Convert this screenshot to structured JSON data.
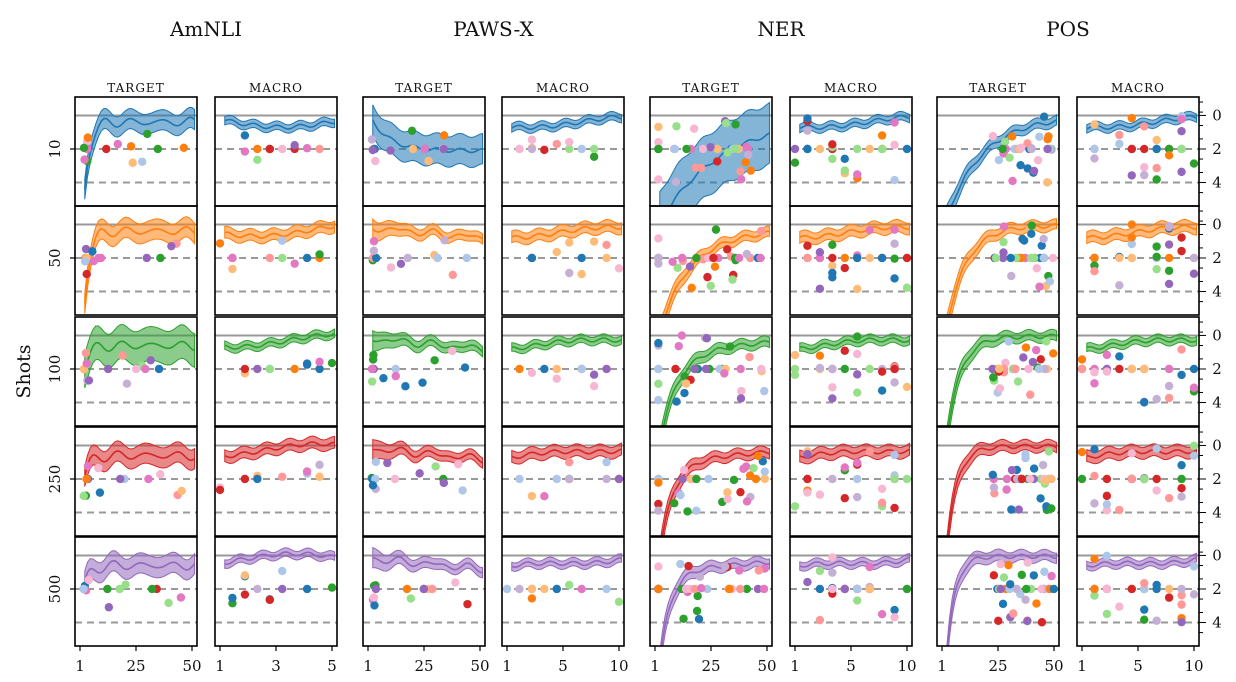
{
  "chart_data": {
    "type": "line",
    "ylabel": "Shots",
    "tasks": [
      {
        "title": "AmNLI",
        "target_xticks": [
          "1",
          "25",
          "50"
        ],
        "macro_xticks": [
          "1",
          "3",
          "5"
        ]
      },
      {
        "title": "PAWS-X",
        "target_xticks": [
          "1",
          "25",
          "50"
        ],
        "macro_xticks": [
          "1",
          "5",
          "10"
        ]
      },
      {
        "title": "NER",
        "target_xticks": [
          "1",
          "25",
          "50"
        ],
        "macro_xticks": [
          "1",
          "5",
          "10"
        ]
      },
      {
        "title": "POS",
        "target_xticks": [
          "1",
          "25",
          "50"
        ],
        "macro_xticks": [
          "1",
          "5",
          "10"
        ]
      }
    ],
    "panel_labels": [
      "TARGET",
      "MACRO"
    ],
    "shots": [
      "10",
      "50",
      "100",
      "250",
      "500"
    ],
    "right_yticks": [
      "0",
      "2",
      "4"
    ],
    "row_colors": [
      "#1f77b4",
      "#ff7f0e",
      "#2ca02c",
      "#d62728",
      "#9467bd"
    ],
    "dot_palette": [
      "#1f77b4",
      "#aec7e8",
      "#ff7f0e",
      "#ffbb78",
      "#2ca02c",
      "#98df8a",
      "#d62728",
      "#ff9896",
      "#9467bd",
      "#c5b0d5",
      "#e377c2",
      "#f7b6d2"
    ],
    "ylim": [
      -1.1,
      5.4
    ],
    "reference_lines": [
      {
        "y": 0,
        "style": "solid"
      },
      {
        "y": 2,
        "style": "dashed"
      },
      {
        "y": 4,
        "style": "dashed"
      }
    ],
    "grid": false
  }
}
